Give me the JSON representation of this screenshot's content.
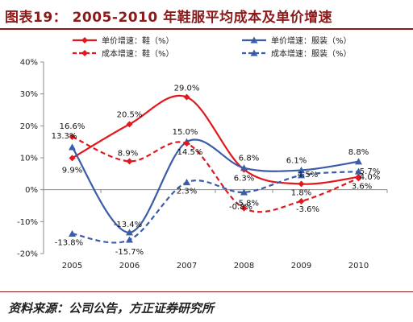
{
  "header": {
    "title": "图表19： 2005-2010 年鞋服平均成本及单价增速"
  },
  "footer": {
    "source": "资料来源：公司公告，方正证券研究所"
  },
  "chart_data": {
    "type": "line",
    "categories": [
      "2005",
      "2006",
      "2007",
      "2008",
      "2009",
      "2010"
    ],
    "ylim": [
      -20,
      40
    ],
    "yticks": [
      -20,
      -10,
      0,
      10,
      20,
      30,
      40
    ],
    "ytick_labels": [
      "-20%",
      "-10%",
      "0%",
      "10%",
      "20%",
      "30%",
      "40%"
    ],
    "grid": false,
    "legend_placement": "top",
    "series": [
      {
        "name": "单价增速：鞋（%）",
        "color": "#e0191e",
        "dashed": false,
        "marker": "diamond",
        "values": [
          9.9,
          20.5,
          29.0,
          6.3,
          1.8,
          4.0
        ],
        "labels": [
          "9.9%",
          "20.5%",
          "29.0%",
          "6.3%",
          "1.8%",
          "4.0%"
        ]
      },
      {
        "name": "单价增速：服装（%）",
        "color": "#3a5da8",
        "dashed": false,
        "marker": "triangle",
        "values": [
          13.3,
          -13.4,
          15.0,
          6.8,
          6.1,
          8.8
        ],
        "labels": [
          "13.3%",
          "-13.4%",
          "15.0%",
          "6.8%",
          "6.1%",
          "8.8%"
        ]
      },
      {
        "name": "成本增速：鞋（%）",
        "color": "#e0191e",
        "dashed": true,
        "marker": "diamond",
        "values": [
          16.6,
          8.9,
          14.5,
          -5.8,
          -3.6,
          3.6
        ],
        "labels": [
          "16.6%",
          "8.9%",
          "14.5%",
          "-5.8%",
          "-3.6%",
          "3.6%"
        ]
      },
      {
        "name": "成本增速：服装（%）",
        "color": "#3a5da8",
        "dashed": true,
        "marker": "triangle",
        "values": [
          -13.8,
          -15.7,
          2.3,
          -0.8,
          4.5,
          5.7
        ],
        "labels": [
          "-13.8%",
          "-15.7%",
          "2.3%",
          "-0.8%",
          "4.5%",
          "5.7%"
        ]
      }
    ]
  }
}
